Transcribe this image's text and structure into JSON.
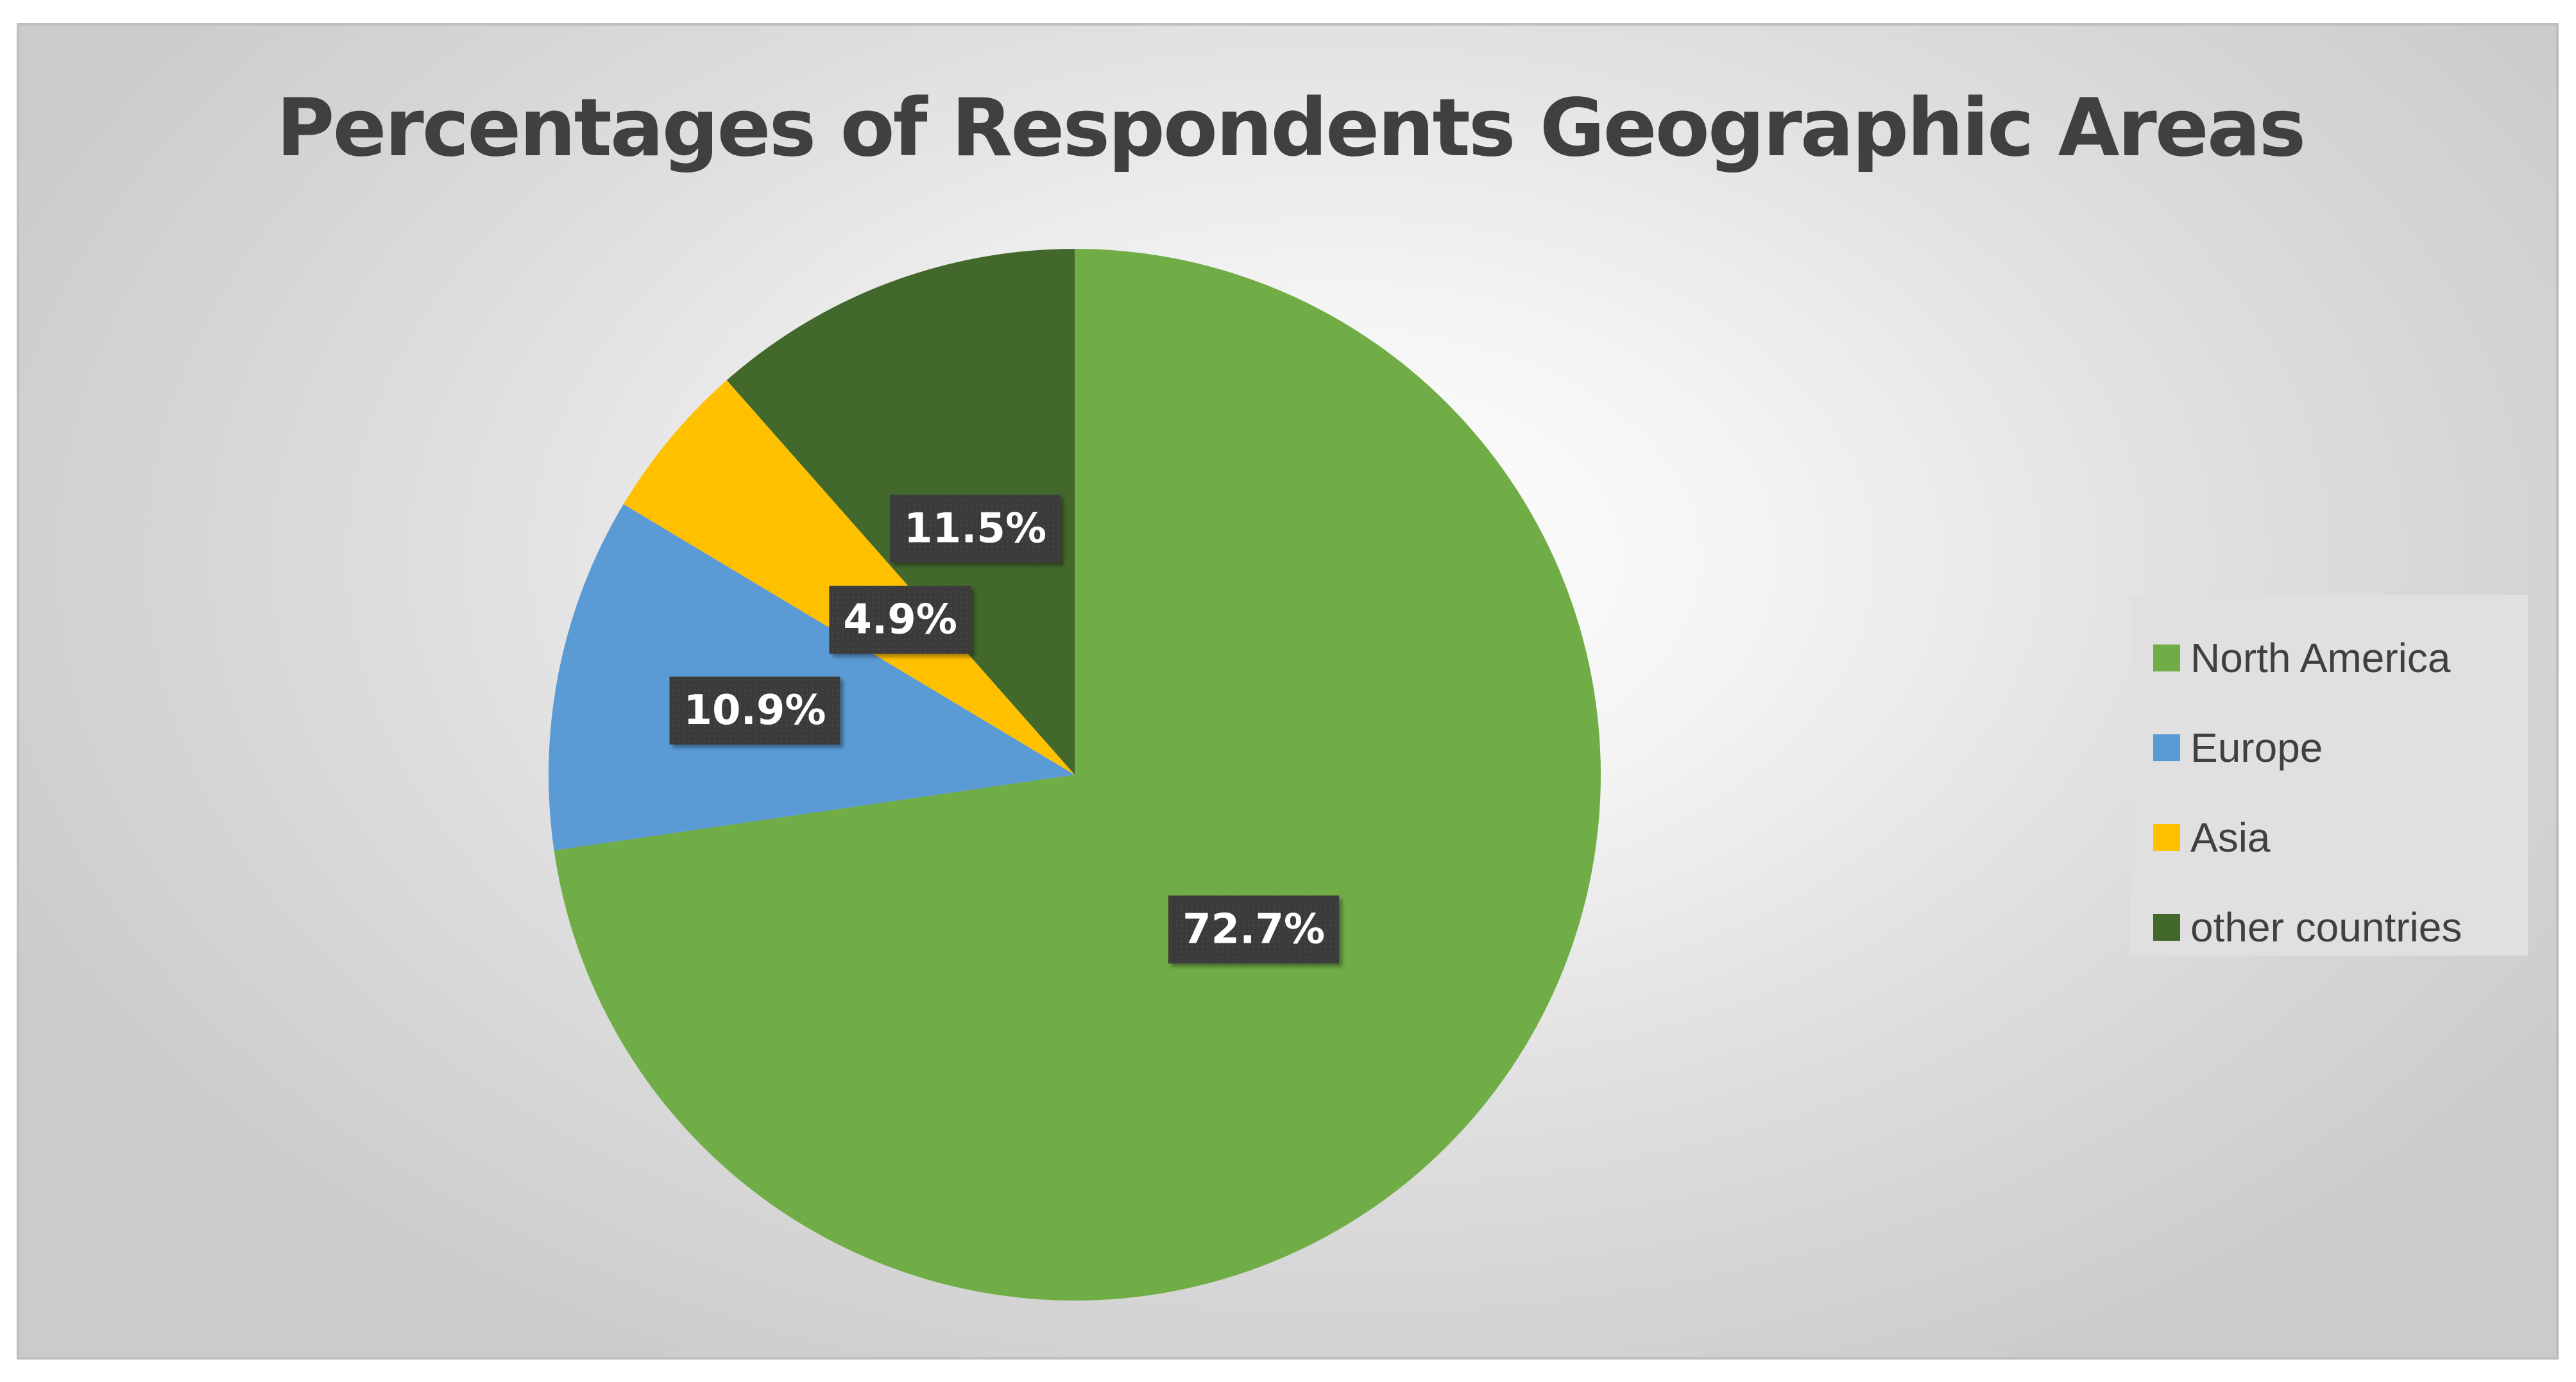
{
  "chart_data": {
    "type": "pie",
    "title": "Percentages of Respondents Geographic Areas",
    "categories": [
      "North America",
      "Europe",
      "Asia",
      "other countries"
    ],
    "values": [
      72.7,
      10.9,
      4.9,
      11.5
    ],
    "data_labels": [
      "72.7%",
      "10.9%",
      "4.9%",
      "11.5%"
    ],
    "colors": [
      "#70ad47",
      "#5b9bd5",
      "#ffc000",
      "#43682b"
    ],
    "start_angle": "12 o'clock, clockwise",
    "legend": {
      "position": "right",
      "entries": [
        "North America",
        "Europe",
        "Asia",
        "other countries"
      ]
    }
  }
}
